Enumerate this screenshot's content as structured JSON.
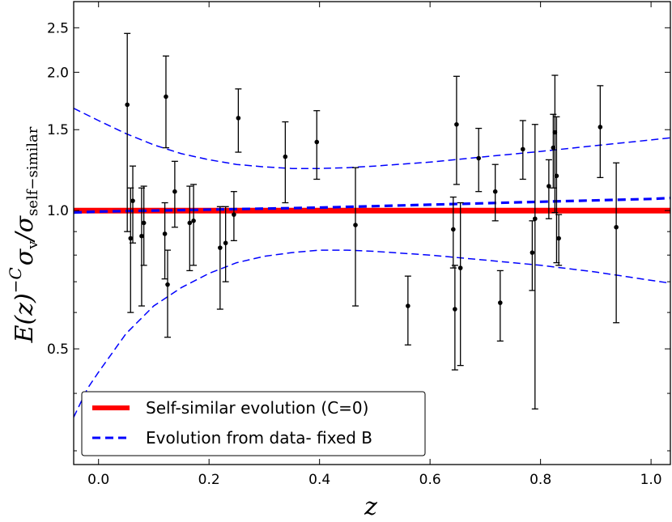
{
  "chart_data": {
    "type": "scatter",
    "title": "",
    "xlabel": "z",
    "ylabel_parts": {
      "lhs": "E(z)",
      "exponent": "−C",
      "sigma": "σ",
      "sub_v": "v",
      "slash": "/",
      "sub_ss": "self−similar"
    },
    "xlim": [
      -0.045,
      1.035
    ],
    "ylim": [
      0.28,
      2.85
    ],
    "yscale": "log",
    "x_ticks": [
      {
        "value": 0.0,
        "label": "0.0"
      },
      {
        "value": 0.2,
        "label": "0.2"
      },
      {
        "value": 0.4,
        "label": "0.4"
      },
      {
        "value": 0.6,
        "label": "0.6"
      },
      {
        "value": 0.8,
        "label": "0.8"
      },
      {
        "value": 1.0,
        "label": "1.0"
      }
    ],
    "y_ticks": [
      {
        "value": 0.5,
        "label": "0.5"
      },
      {
        "value": 1.0,
        "label": "1.0"
      },
      {
        "value": 1.5,
        "label": "1.5"
      },
      {
        "value": 2.0,
        "label": "2.0"
      },
      {
        "value": 2.5,
        "label": "2.5"
      }
    ],
    "legend": {
      "position": "lower-left",
      "entries": [
        {
          "label": "Self-similar evolution (C=0)",
          "color": "#ff0000",
          "style": "solid"
        },
        {
          "label": "Evolution from data- fixed B",
          "color": "#0000ff",
          "style": "dashed"
        }
      ]
    },
    "series": [
      {
        "name": "Self-similar evolution (C=0)",
        "kind": "line",
        "color": "#ff0000",
        "x": [
          -0.045,
          1.035
        ],
        "y": [
          1.0,
          1.0
        ]
      },
      {
        "name": "Evolution from data- fixed B",
        "kind": "line",
        "color": "#0000ff",
        "x": [
          -0.045,
          0.0,
          0.2,
          0.4,
          0.6,
          0.8,
          1.0,
          1.035
        ],
        "y": [
          0.99,
          0.995,
          1.005,
          1.015,
          1.03,
          1.045,
          1.06,
          1.065
        ]
      },
      {
        "name": "Upper confidence band",
        "kind": "band",
        "color": "#0000ff",
        "x": [
          -0.045,
          0.0,
          0.05,
          0.1,
          0.15,
          0.2,
          0.25,
          0.3,
          0.35,
          0.4,
          0.45,
          0.5,
          0.6,
          0.7,
          0.8,
          0.9,
          1.0,
          1.035
        ],
        "y": [
          1.67,
          1.57,
          1.47,
          1.39,
          1.33,
          1.29,
          1.26,
          1.245,
          1.235,
          1.235,
          1.24,
          1.25,
          1.275,
          1.31,
          1.345,
          1.385,
          1.425,
          1.44
        ]
      },
      {
        "name": "Lower confidence band",
        "kind": "band",
        "color": "#0000ff",
        "x": [
          -0.045,
          -0.02,
          0.0,
          0.05,
          0.1,
          0.15,
          0.2,
          0.25,
          0.3,
          0.35,
          0.4,
          0.45,
          0.5,
          0.6,
          0.7,
          0.8,
          0.9,
          1.0,
          1.035
        ],
        "y": [
          0.355,
          0.41,
          0.445,
          0.54,
          0.62,
          0.68,
          0.73,
          0.77,
          0.795,
          0.81,
          0.82,
          0.82,
          0.815,
          0.8,
          0.78,
          0.76,
          0.735,
          0.705,
          0.695
        ]
      },
      {
        "name": "Clusters",
        "kind": "errorbar",
        "color": "#000000",
        "points": [
          {
            "x": 0.052,
            "y": 1.7,
            "ylo": 0.9,
            "yhi": 2.43
          },
          {
            "x": 0.058,
            "y": 0.87,
            "ylo": 0.6,
            "yhi": 1.12
          },
          {
            "x": 0.062,
            "y": 1.05,
            "ylo": 0.85,
            "yhi": 1.25
          },
          {
            "x": 0.078,
            "y": 0.88,
            "ylo": 0.62,
            "yhi": 1.12
          },
          {
            "x": 0.082,
            "y": 0.94,
            "ylo": 0.76,
            "yhi": 1.13
          },
          {
            "x": 0.12,
            "y": 0.89,
            "ylo": 0.71,
            "yhi": 1.04
          },
          {
            "x": 0.122,
            "y": 1.77,
            "ylo": 1.37,
            "yhi": 2.17
          },
          {
            "x": 0.125,
            "y": 0.69,
            "ylo": 0.53,
            "yhi": 0.82
          },
          {
            "x": 0.138,
            "y": 1.1,
            "ylo": 0.92,
            "yhi": 1.28
          },
          {
            "x": 0.165,
            "y": 0.94,
            "ylo": 0.74,
            "yhi": 1.13
          },
          {
            "x": 0.172,
            "y": 0.95,
            "ylo": 0.76,
            "yhi": 1.14
          },
          {
            "x": 0.22,
            "y": 0.83,
            "ylo": 0.61,
            "yhi": 1.02
          },
          {
            "x": 0.23,
            "y": 0.85,
            "ylo": 0.7,
            "yhi": 1.02
          },
          {
            "x": 0.245,
            "y": 0.98,
            "ylo": 0.86,
            "yhi": 1.1
          },
          {
            "x": 0.253,
            "y": 1.59,
            "ylo": 1.34,
            "yhi": 1.84
          },
          {
            "x": 0.338,
            "y": 1.31,
            "ylo": 1.04,
            "yhi": 1.56
          },
          {
            "x": 0.395,
            "y": 1.41,
            "ylo": 1.17,
            "yhi": 1.65
          },
          {
            "x": 0.465,
            "y": 0.93,
            "ylo": 0.62,
            "yhi": 1.24
          },
          {
            "x": 0.56,
            "y": 0.62,
            "ylo": 0.51,
            "yhi": 0.72
          },
          {
            "x": 0.642,
            "y": 0.91,
            "ylo": 0.75,
            "yhi": 1.07
          },
          {
            "x": 0.645,
            "y": 0.61,
            "ylo": 0.45,
            "yhi": 0.76
          },
          {
            "x": 0.648,
            "y": 1.54,
            "ylo": 1.14,
            "yhi": 1.96
          },
          {
            "x": 0.655,
            "y": 0.75,
            "ylo": 0.46,
            "yhi": 1.04
          },
          {
            "x": 0.688,
            "y": 1.3,
            "ylo": 1.1,
            "yhi": 1.51
          },
          {
            "x": 0.718,
            "y": 1.1,
            "ylo": 0.95,
            "yhi": 1.26
          },
          {
            "x": 0.727,
            "y": 0.63,
            "ylo": 0.52,
            "yhi": 0.74
          },
          {
            "x": 0.768,
            "y": 1.36,
            "ylo": 1.17,
            "yhi": 1.57
          },
          {
            "x": 0.785,
            "y": 0.81,
            "ylo": 0.67,
            "yhi": 0.95
          },
          {
            "x": 0.79,
            "y": 0.96,
            "ylo": 0.37,
            "yhi": 1.54
          },
          {
            "x": 0.815,
            "y": 1.13,
            "ylo": 0.96,
            "yhi": 1.29
          },
          {
            "x": 0.823,
            "y": 1.37,
            "ylo": 1.12,
            "yhi": 1.62
          },
          {
            "x": 0.826,
            "y": 1.48,
            "ylo": 0.99,
            "yhi": 1.97
          },
          {
            "x": 0.829,
            "y": 1.19,
            "ylo": 0.77,
            "yhi": 1.6
          },
          {
            "x": 0.833,
            "y": 0.87,
            "ylo": 0.76,
            "yhi": 0.98
          },
          {
            "x": 0.908,
            "y": 1.52,
            "ylo": 1.18,
            "yhi": 1.87
          },
          {
            "x": 0.937,
            "y": 0.92,
            "ylo": 0.57,
            "yhi": 1.27
          }
        ]
      }
    ]
  }
}
